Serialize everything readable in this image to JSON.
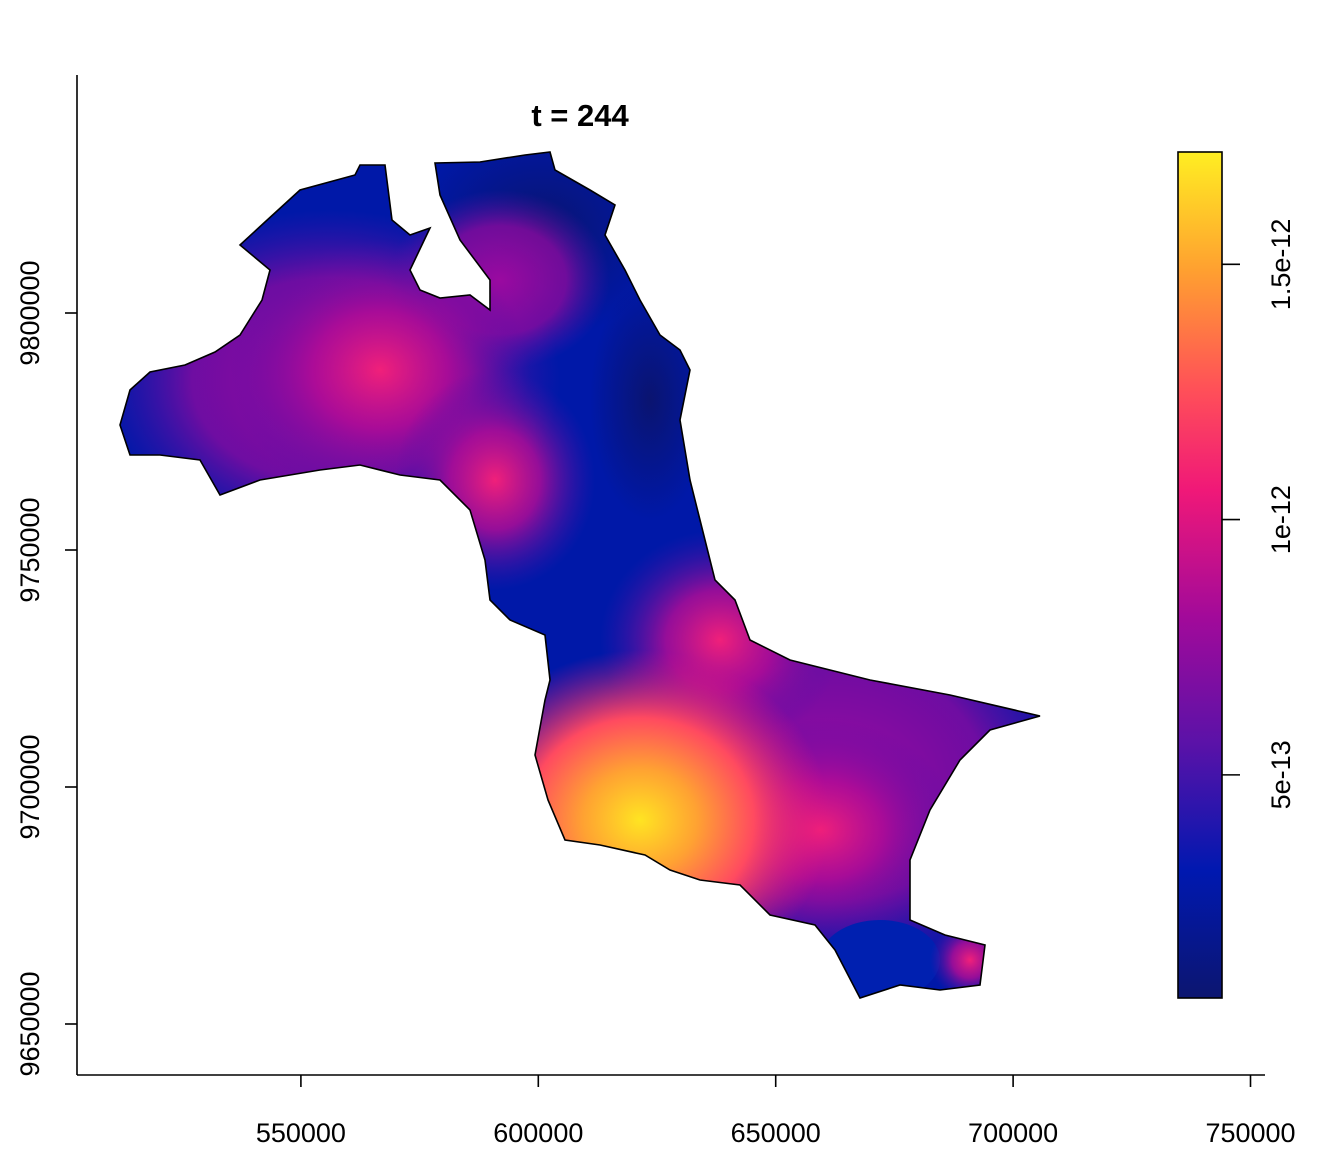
{
  "chart_data": {
    "type": "raster",
    "title": "t = 244",
    "xlim": [
      502842,
      753053
    ],
    "xticks": [
      550000,
      600000,
      650000,
      700000,
      750000
    ],
    "ylim": [
      9639240,
      9849790
    ],
    "yticks": [
      9650000,
      9700000,
      9750000,
      9800000
    ],
    "zlim": [
      6.3e-14,
      1.72e-12
    ],
    "zticks": [
      5e-13,
      1e-12,
      1.5e-12
    ]
  }
}
